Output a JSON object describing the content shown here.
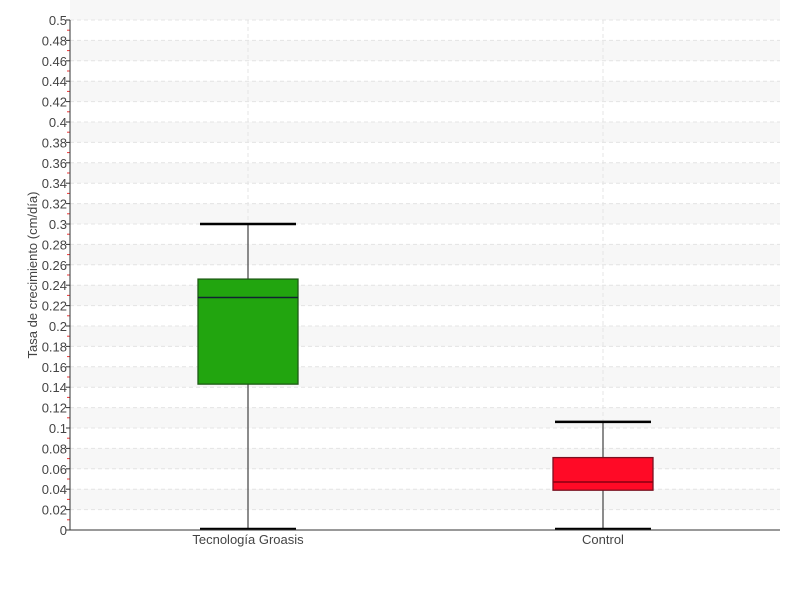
{
  "chart_data": {
    "type": "boxplot",
    "title": "",
    "xlabel": "",
    "ylabel": "Tasa de crecimiento (cm/día)",
    "ylim": [
      0,
      0.5
    ],
    "ytick_step": 0.02,
    "ytick_labels": [
      "0",
      "0.02",
      "0.04",
      "0.06",
      "0.08",
      "0.1",
      "0.12",
      "0.14",
      "0.16",
      "0.18",
      "0.2",
      "0.22",
      "0.24",
      "0.26",
      "0.28",
      "0.3",
      "0.32",
      "0.34",
      "0.36",
      "0.38",
      "0.4",
      "0.42",
      "0.44",
      "0.46",
      "0.48",
      "0.5"
    ],
    "grid": true,
    "categories": [
      "Tecnología Groasis",
      "Control"
    ],
    "series": [
      {
        "category": "Tecnología Groasis",
        "min": 0.001,
        "q1": 0.143,
        "median": 0.228,
        "q3": 0.246,
        "max": 0.3,
        "color": "#22a50f"
      },
      {
        "category": "Control",
        "min": 0.001,
        "q1": 0.039,
        "median": 0.047,
        "q3": 0.071,
        "max": 0.106,
        "color": "#ff0a26"
      }
    ]
  }
}
